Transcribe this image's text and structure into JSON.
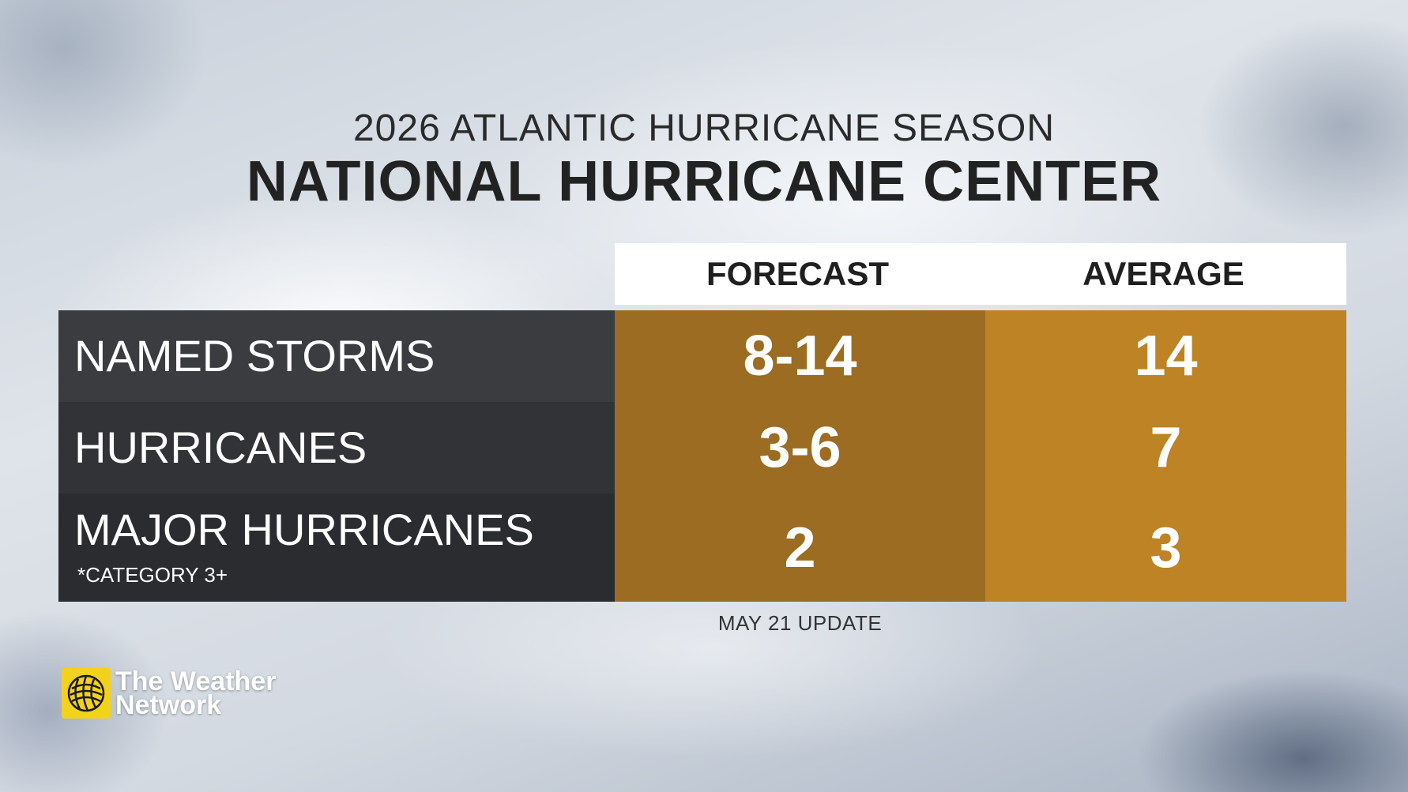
{
  "titles": {
    "season": "2026 ATLANTIC HURRICANE SEASON",
    "agency": "NATIONAL HURRICANE CENTER"
  },
  "chart_data": {
    "type": "table",
    "columns": [
      "FORECAST",
      "AVERAGE"
    ],
    "rows": [
      {
        "label": "NAMED STORMS",
        "note": "",
        "forecast": "8-14",
        "average": "14"
      },
      {
        "label": "HURRICANES",
        "note": "",
        "forecast": "3-6",
        "average": "7"
      },
      {
        "label": "MAJOR HURRICANES",
        "note": "*CATEGORY 3+",
        "forecast": "2",
        "average": "3"
      }
    ],
    "update": "MAY 21 UPDATE"
  },
  "logo": {
    "line1": "The Weather",
    "line2": "Network",
    "icon": "globe-icon"
  },
  "colors": {
    "forecast_cell": "#9b6c22",
    "average_cell": "#bd8325",
    "label_cell": "#333538",
    "logo_yellow": "#f2d21b"
  }
}
